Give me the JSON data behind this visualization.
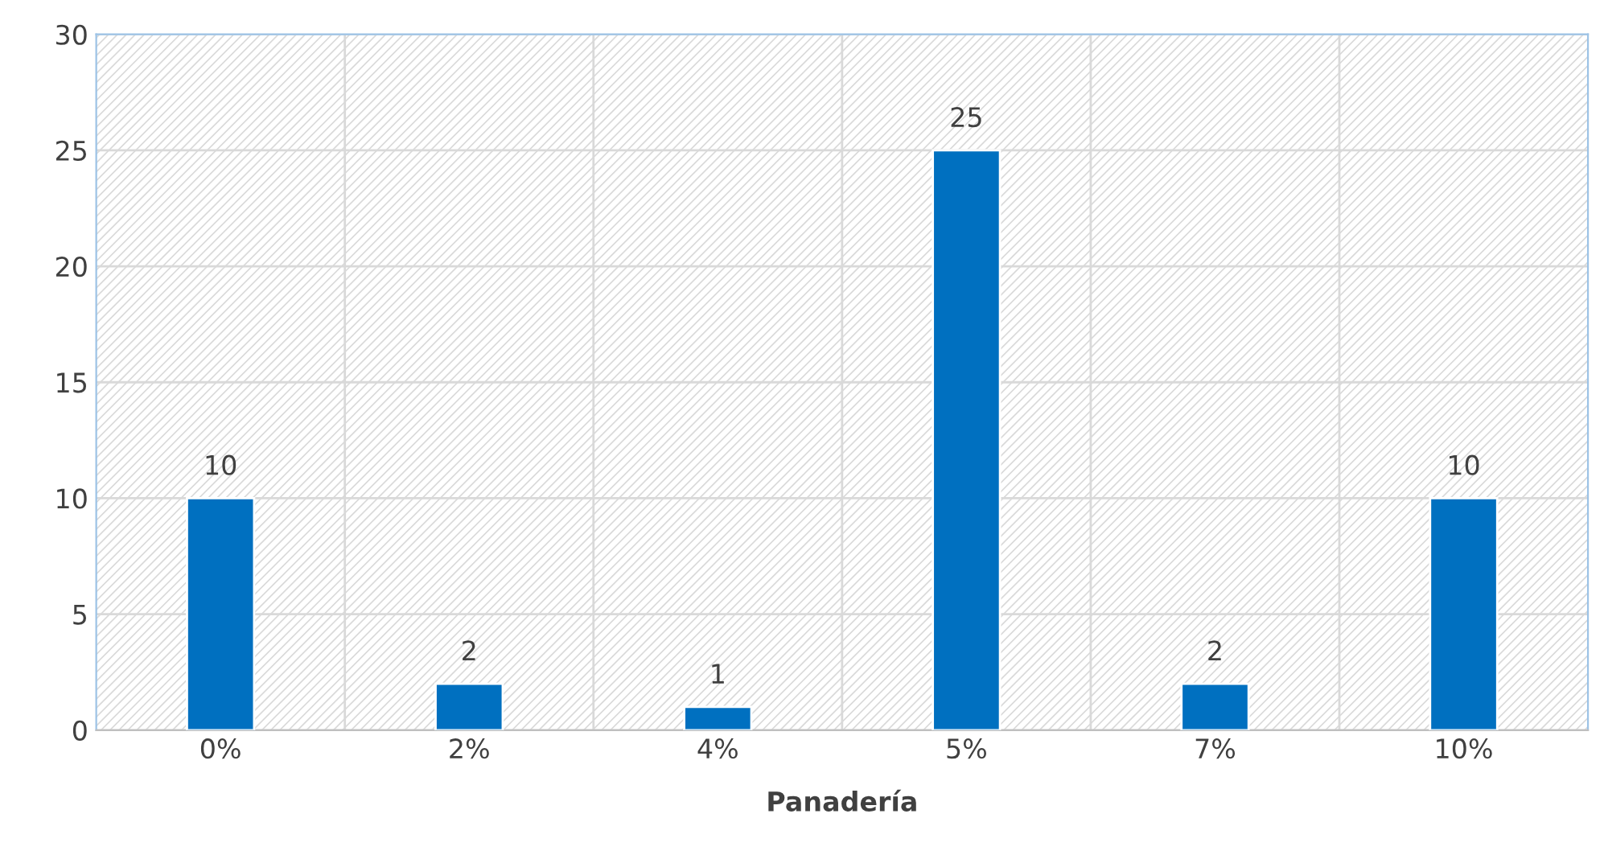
{
  "chart_data": {
    "type": "bar",
    "xlabel": "Panadería",
    "categories": [
      "0%",
      "2%",
      "4%",
      "5%",
      "7%",
      "10%"
    ],
    "values": [
      10,
      2,
      1,
      25,
      2,
      10
    ],
    "color": "#0070c0",
    "ylim": [
      0,
      30
    ],
    "yticks": [
      0,
      5,
      10,
      15,
      20,
      25,
      30
    ],
    "grid": true,
    "data_labels": true
  }
}
